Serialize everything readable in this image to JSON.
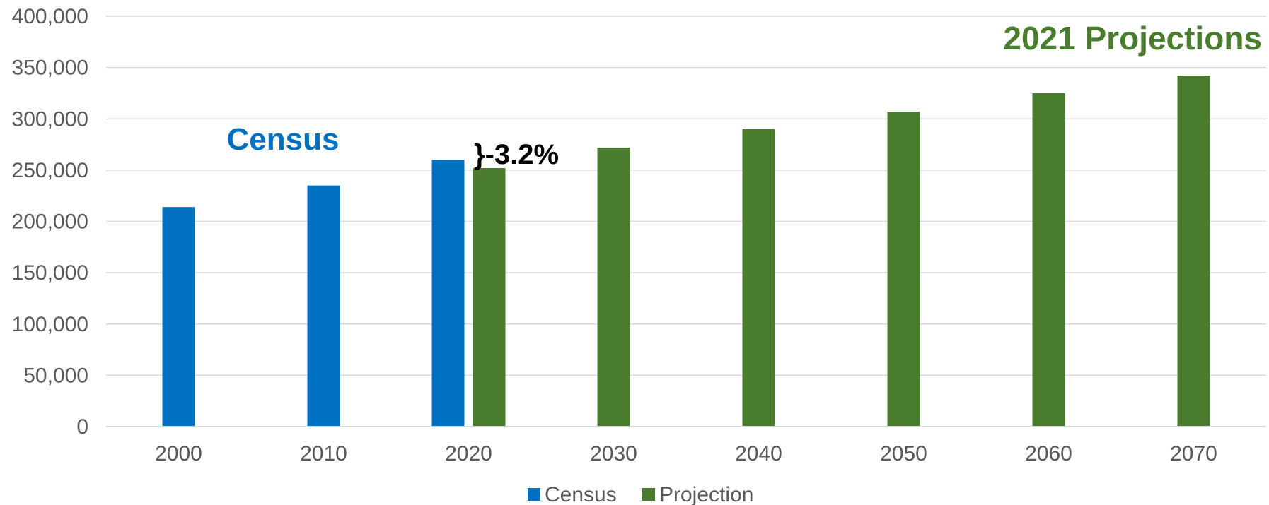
{
  "chart_data": {
    "type": "bar",
    "categories": [
      "2000",
      "2010",
      "2020",
      "2030",
      "2040",
      "2050",
      "2060",
      "2070"
    ],
    "series": [
      {
        "name": "Census",
        "values": [
          214000,
          235000,
          260000,
          null,
          null,
          null,
          null,
          null
        ],
        "color": "#0070c0"
      },
      {
        "name": "Projection",
        "values": [
          null,
          null,
          252000,
          272000,
          290000,
          307000,
          325000,
          342000
        ],
        "color": "#4a7c2e"
      }
    ],
    "ylim": [
      0,
      400000
    ],
    "yticks": [
      0,
      50000,
      100000,
      150000,
      200000,
      250000,
      300000,
      350000,
      400000
    ],
    "ytick_labels": [
      "0",
      "50,000",
      "100,000",
      "150,000",
      "200,000",
      "250,000",
      "300,000",
      "350,000",
      "400,000"
    ],
    "grid": true,
    "legend": "bottom-center",
    "annotations": {
      "census_label": {
        "text": "Census",
        "color": "#0070c0"
      },
      "projection_label": {
        "text": "2021 Projections",
        "color": "#4a7c2e"
      },
      "difference_label": {
        "text": "}-3.2%",
        "color": "#000000"
      }
    }
  }
}
